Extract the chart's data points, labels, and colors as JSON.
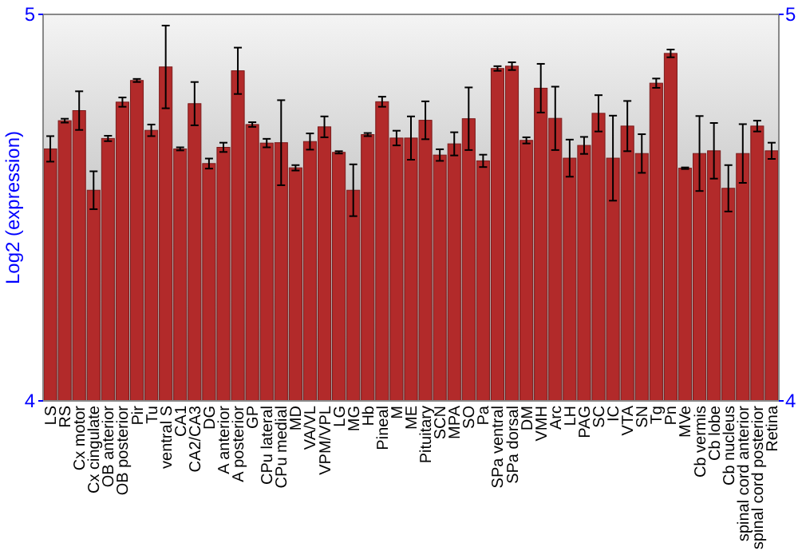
{
  "chart_data": {
    "type": "bar",
    "ylabel": "Log2 (expression)",
    "categories": [
      "LS",
      "RS",
      "Cx motor",
      "Cx cingulate",
      "OB anterior",
      "OB posterior",
      "Pir",
      "Tu",
      "ventral S",
      "CA1",
      "CA2/CA3",
      "DG",
      "A anterior",
      "A posterior",
      "GP",
      "CPu lateral",
      "CPu medial",
      "MD",
      "VA/VL",
      "VPM/VPL",
      "LG",
      "MG",
      "Hb",
      "Pineal",
      "M",
      "ME",
      "Pituitary",
      "SCN",
      "MPA",
      "SO",
      "Pa",
      "SPa ventral",
      "SPa dorsal",
      "DM",
      "VMH",
      "Arc",
      "LH",
      "PAG",
      "SC",
      "IC",
      "VTA",
      "SN",
      "Tg",
      "Pn",
      "MVe",
      "Cb vermis",
      "Cb lobe",
      "Cb nucleus",
      "spinal cord anterior",
      "spinal cord posterior",
      "Retina"
    ],
    "values": [
      4.652,
      4.725,
      4.751,
      4.545,
      4.679,
      4.773,
      4.829,
      4.7,
      4.864,
      4.652,
      4.769,
      4.614,
      4.656,
      4.854,
      4.715,
      4.667,
      4.668,
      4.603,
      4.671,
      4.709,
      4.643,
      4.545,
      4.689,
      4.774,
      4.68,
      4.68,
      4.726,
      4.636,
      4.665,
      4.73,
      4.621,
      4.86,
      4.866,
      4.674,
      4.809,
      4.731,
      4.628,
      4.661,
      4.744,
      4.628,
      4.711,
      4.64,
      4.822,
      4.899,
      4.602,
      4.64,
      4.647,
      4.55,
      4.64,
      4.711,
      4.647
    ],
    "errors": [
      0.033,
      0.005,
      0.05,
      0.049,
      0.007,
      0.012,
      0.004,
      0.015,
      0.107,
      0.004,
      0.056,
      0.013,
      0.012,
      0.06,
      0.006,
      0.011,
      0.11,
      0.007,
      0.021,
      0.027,
      0.003,
      0.067,
      0.004,
      0.013,
      0.019,
      0.056,
      0.049,
      0.015,
      0.03,
      0.081,
      0.016,
      0.006,
      0.01,
      0.008,
      0.063,
      0.082,
      0.048,
      0.022,
      0.047,
      0.11,
      0.065,
      0.05,
      0.012,
      0.01,
      0.002,
      0.097,
      0.072,
      0.06,
      0.076,
      0.014,
      0.021
    ],
    "color": "#b22a2a",
    "ylim": [
      4,
      5
    ],
    "yticks": [
      4,
      5
    ],
    "y2lim": [
      4,
      5
    ],
    "y2ticks": [
      4,
      5
    ]
  }
}
